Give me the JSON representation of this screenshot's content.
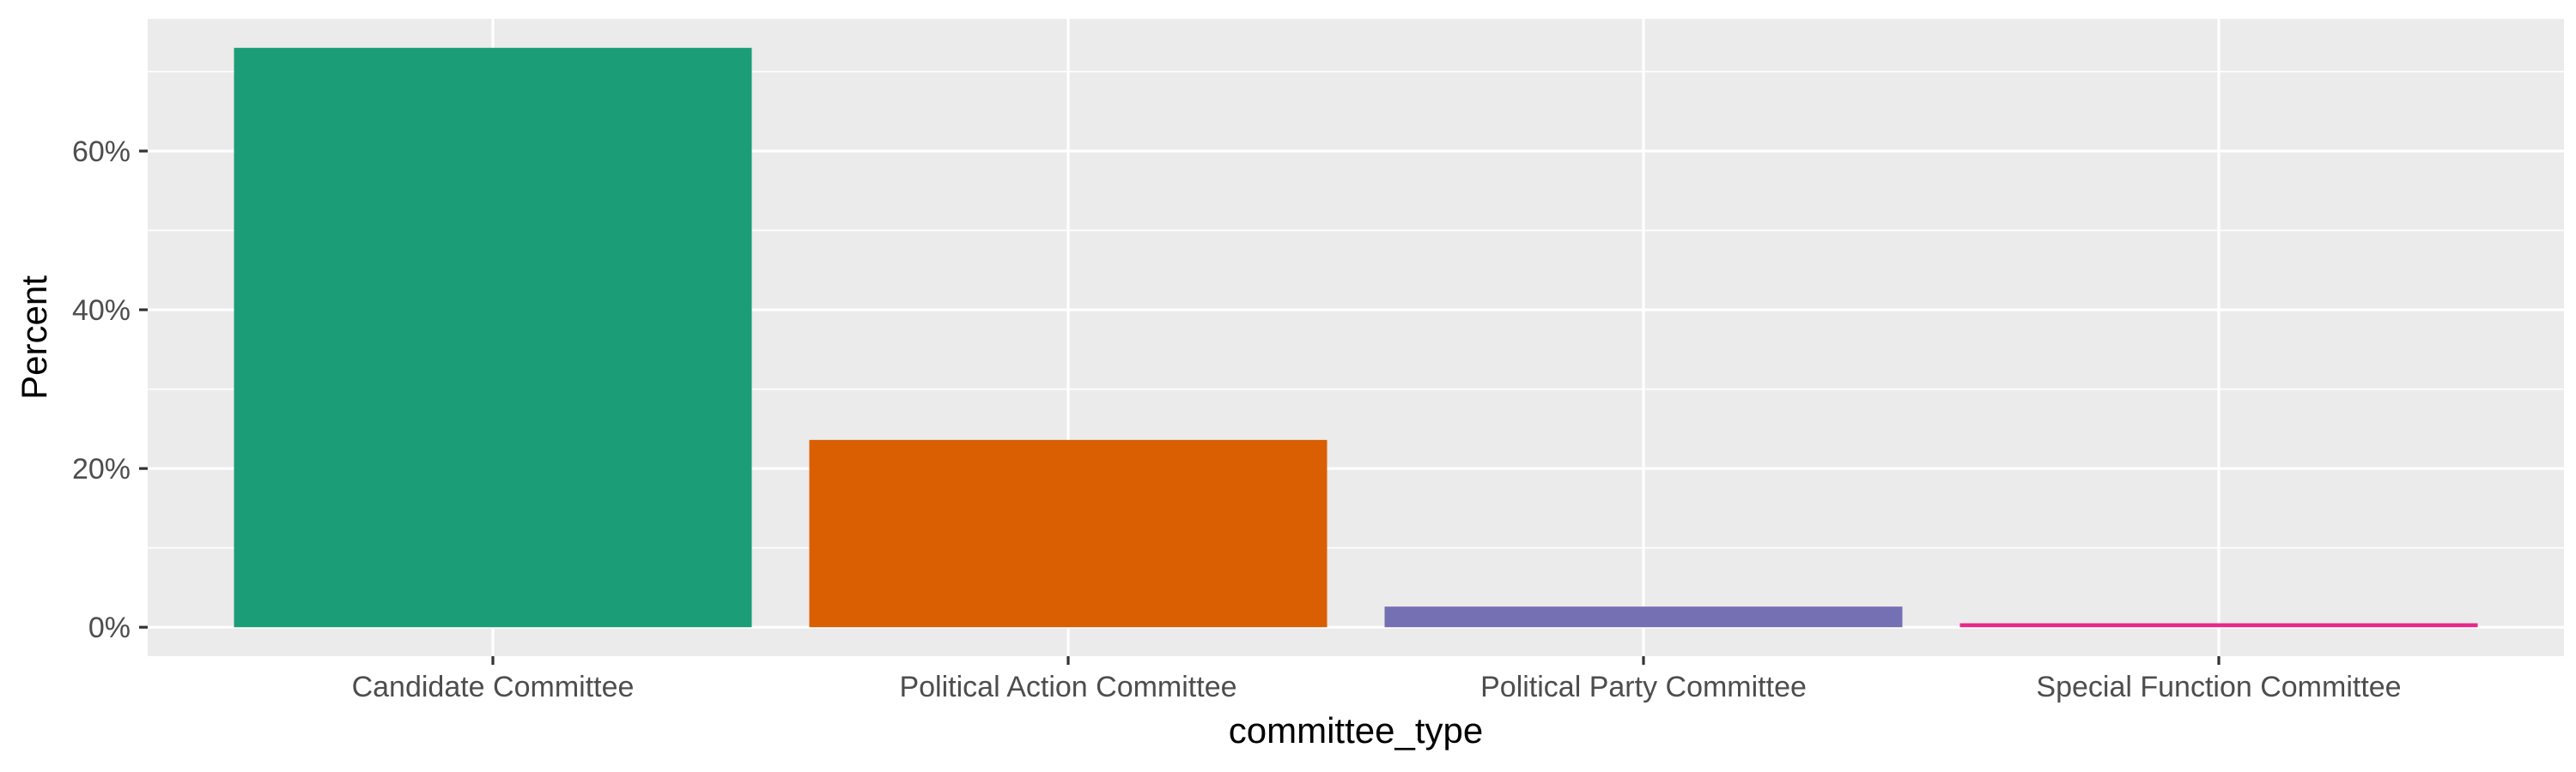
{
  "chart_data": {
    "type": "bar",
    "categories": [
      "Candidate Committee",
      "Political Action Committee",
      "Political Party Committee",
      "Special Function Committee"
    ],
    "values": [
      73.0,
      23.6,
      2.6,
      0.5
    ],
    "colors": [
      "#1B9E77",
      "#D95F02",
      "#7570B3",
      "#E7298A"
    ],
    "xlabel": "committee_type",
    "ylabel": "Percent",
    "ylim": [
      -3.65,
      76.65
    ],
    "yticks": [
      0,
      20,
      40,
      60
    ],
    "ytick_labels": [
      "0%",
      "20%",
      "40%",
      "60%"
    ],
    "grid": true,
    "panel_background": "#EBEBEB"
  }
}
